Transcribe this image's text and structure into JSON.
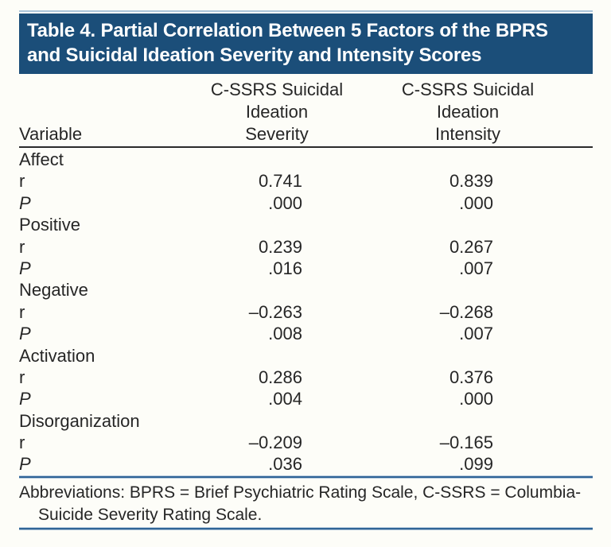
{
  "title": {
    "line1": "Table 4. Partial Correlation Between 5 Factors of the BPRS",
    "line2": "and Suicidal Ideation Severity and Intensity Scores"
  },
  "table": {
    "col1_header": "Variable",
    "col2_header_lines": [
      "C-SSRS Suicidal",
      "Ideation",
      "Severity"
    ],
    "col3_header_lines": [
      "C-SSRS Suicidal",
      "Ideation",
      "Intensity"
    ],
    "row_label_r": "r",
    "row_label_p": "P",
    "groups": [
      {
        "label": "Affect",
        "r": [
          "0.741",
          "0.839"
        ],
        "p": [
          ".000",
          ".000"
        ]
      },
      {
        "label": "Positive",
        "r": [
          "0.239",
          "0.267"
        ],
        "p": [
          ".016",
          ".007"
        ]
      },
      {
        "label": "Negative",
        "r": [
          "–0.263",
          "–0.268"
        ],
        "p": [
          ".008",
          ".007"
        ]
      },
      {
        "label": "Activation",
        "r": [
          "0.286",
          "0.376"
        ],
        "p": [
          ".004",
          ".000"
        ]
      },
      {
        "label": "Disorganization",
        "r": [
          "–0.209",
          "–0.165"
        ],
        "p": [
          ".036",
          ".099"
        ]
      }
    ]
  },
  "footnote": {
    "line1": "Abbreviations: BPRS = Brief Psychiatric Rating Scale, C-SSRS = Columbia-",
    "line2": "Suicide Severity Rating Scale."
  },
  "colors": {
    "title_bg": "#1b4e79",
    "title_text": "#ffffff",
    "rule_blue": "#2f6496",
    "rule_light_blue": "#abc5da",
    "rule_dark": "#2b2b2b",
    "body_text": "#262626"
  }
}
